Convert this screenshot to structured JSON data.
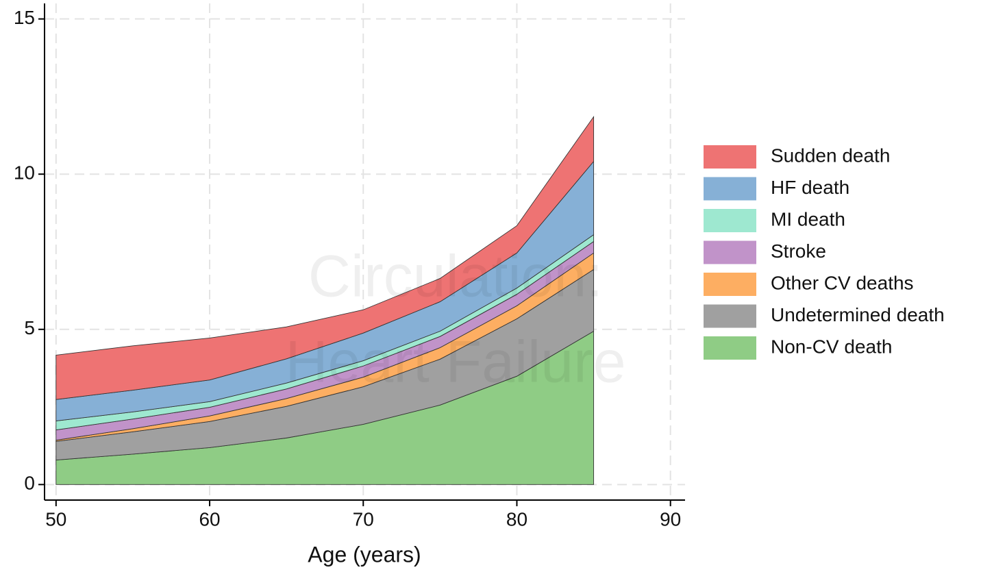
{
  "chart_data": {
    "type": "stacked-area",
    "x_label": "Age (years)",
    "watermark": [
      "Circulation:",
      "Heart Failure"
    ],
    "x": [
      50,
      55,
      60,
      65,
      70,
      75,
      80,
      85
    ],
    "xlim": [
      49.25,
      90.95
    ],
    "ylim": [
      -0.5,
      15.5
    ],
    "xticks": [
      50,
      60,
      70,
      80,
      90
    ],
    "yticks": [
      0,
      5,
      10,
      15
    ],
    "grid": true,
    "legend": "right",
    "series": [
      {
        "name": "Sudden death",
        "color": "#ee7373",
        "values": [
          1.43,
          1.43,
          1.35,
          1.03,
          0.75,
          0.75,
          0.88,
          1.44
        ]
      },
      {
        "name": "HF death",
        "color": "#86b0d6",
        "values": [
          0.69,
          0.7,
          0.7,
          0.78,
          0.89,
          0.95,
          1.13,
          2.36
        ]
      },
      {
        "name": "MI death",
        "color": "#9ee8d0",
        "values": [
          0.29,
          0.23,
          0.18,
          0.19,
          0.17,
          0.17,
          0.2,
          0.22
        ]
      },
      {
        "name": "Stroke",
        "color": "#c193c9",
        "values": [
          0.33,
          0.31,
          0.28,
          0.31,
          0.36,
          0.36,
          0.37,
          0.37
        ]
      },
      {
        "name": "Other CV deaths",
        "color": "#fdae62",
        "values": [
          0.04,
          0.1,
          0.18,
          0.25,
          0.31,
          0.37,
          0.42,
          0.53
        ]
      },
      {
        "name": "Undetermined death",
        "color": "#a0a0a0",
        "values": [
          0.6,
          0.72,
          0.84,
          1.02,
          1.21,
          1.48,
          1.85,
          1.99
        ]
      },
      {
        "name": "Non-CV death",
        "color": "#8fcc85",
        "values": [
          0.79,
          0.98,
          1.19,
          1.5,
          1.94,
          2.56,
          3.49,
          4.94
        ]
      }
    ]
  }
}
